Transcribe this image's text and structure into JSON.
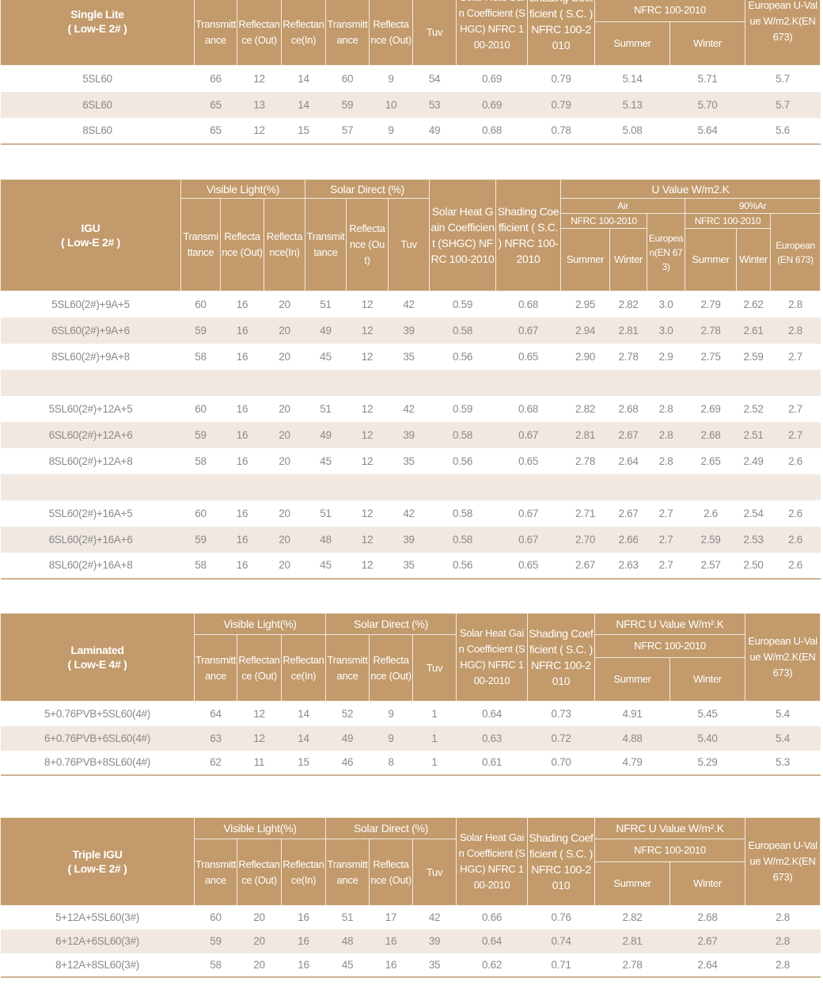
{
  "colors": {
    "header_bg": "#c29a6b",
    "stripe": "#f1e8e1",
    "text": "#8a8a8a"
  },
  "labels": {
    "visible_light": "Visible Light(%)",
    "solar_direct": "Solar  Direct (%)",
    "transmittance": "Transmittance",
    "reflectance_out": "Reflectance (Out)",
    "reflectance_in": "Reflectance(In)",
    "tuv": "Tuv",
    "shgc": "Solar Heat Gain Coefficient (SHGC) NFRC 100-2010",
    "sc": "Shading Coefficient ( S.C. ) NFRC 100-2010",
    "nfrc_u_value": "NFRC U Value W/m².K",
    "nfrc": "NFRC 100-2010",
    "summer": "Summer",
    "winter": "Winter",
    "european_u": "European U-Value W/m2.K(EN 673)",
    "u_value": "U Value W/m2.K",
    "air": "Air",
    "argon": "90%Ar",
    "european_en_air": "European(EN 673)",
    "european_en_ar": "European (EN 673)"
  },
  "single_lite": {
    "title": "Single Lite",
    "subtitle": "( Low-E 2# )",
    "rows": [
      [
        "5SL60",
        "66",
        "12",
        "14",
        "60",
        "9",
        "54",
        "0.69",
        "0.79",
        "5.14",
        "5.71",
        "5.7"
      ],
      [
        "6SL60",
        "65",
        "13",
        "14",
        "59",
        "10",
        "53",
        "0.69",
        "0.79",
        "5.13",
        "5.70",
        "5.7"
      ],
      [
        "8SL60",
        "65",
        "12",
        "15",
        "57",
        "9",
        "49",
        "0.68",
        "0.78",
        "5.08",
        "5.64",
        "5.6"
      ]
    ]
  },
  "igu": {
    "title": "IGU",
    "subtitle": "( Low-E 2# )",
    "rows": [
      [
        "5SL60(2#)+9A+5",
        "60",
        "16",
        "20",
        "51",
        "12",
        "42",
        "0.59",
        "0.68",
        "2.95",
        "2.82",
        "3.0",
        "2.79",
        "2.62",
        "2.8"
      ],
      [
        "6SL60(2#)+9A+6",
        "59",
        "16",
        "20",
        "49",
        "12",
        "39",
        "0.58",
        "0.67",
        "2.94",
        "2.81",
        "3.0",
        "2.78",
        "2.61",
        "2.8"
      ],
      [
        "8SL60(2#)+9A+8",
        "58",
        "16",
        "20",
        "45",
        "12",
        "35",
        "0.56",
        "0.65",
        "2.90",
        "2.78",
        "2.9",
        "2.75",
        "2.59",
        "2.7"
      ],
      [],
      [
        "5SL60(2#)+12A+5",
        "60",
        "16",
        "20",
        "51",
        "12",
        "42",
        "0.59",
        "0.68",
        "2.82",
        "2.68",
        "2.8",
        "2.69",
        "2.52",
        "2.7"
      ],
      [
        "6SL60(2#)+12A+6",
        "59",
        "16",
        "20",
        "49",
        "12",
        "39",
        "0.58",
        "0.67",
        "2.81",
        "2.67",
        "2.8",
        "2.68",
        "2.51",
        "2.7"
      ],
      [
        "8SL60(2#)+12A+8",
        "58",
        "16",
        "20",
        "45",
        "12",
        "35",
        "0.56",
        "0.65",
        "2.78",
        "2.64",
        "2.8",
        "2.65",
        "2.49",
        "2.6"
      ],
      [],
      [
        "5SL60(2#)+16A+5",
        "60",
        "16",
        "20",
        "51",
        "12",
        "42",
        "0.58",
        "0.67",
        "2.71",
        "2.67",
        "2.7",
        "2.6",
        "2.54",
        "2.6"
      ],
      [
        "6SL60(2#)+16A+6",
        "59",
        "16",
        "20",
        "48",
        "12",
        "39",
        "0.58",
        "0.67",
        "2.70",
        "2.66",
        "2.7",
        "2.59",
        "2.53",
        "2.6"
      ],
      [
        "8SL60(2#)+16A+8",
        "58",
        "16",
        "20",
        "45",
        "12",
        "35",
        "0.56",
        "0.65",
        "2.67",
        "2.63",
        "2.7",
        "2.57",
        "2.50",
        "2.6"
      ]
    ]
  },
  "laminated": {
    "title": "Laminated",
    "subtitle": "( Low-E 4# )",
    "rows": [
      [
        "5+0.76PVB+5SL60(4#)",
        "64",
        "12",
        "14",
        "52",
        "9",
        "1",
        "0.64",
        "0.73",
        "4.91",
        "5.45",
        "5.4"
      ],
      [
        "6+0.76PVB+6SL60(4#)",
        "63",
        "12",
        "14",
        "49",
        "9",
        "1",
        "0.63",
        "0.72",
        "4.88",
        "5.40",
        "5.4"
      ],
      [
        "8+0.76PVB+8SL60(4#)",
        "62",
        "11",
        "15",
        "46",
        "8",
        "1",
        "0.61",
        "0.70",
        "4.79",
        "5.29",
        "5.3"
      ]
    ]
  },
  "triple_igu": {
    "title": "Triple IGU",
    "subtitle": "( Low-E 2# )",
    "rows": [
      [
        "5+12A+5SL60(3#)",
        "60",
        "20",
        "16",
        "51",
        "17",
        "42",
        "0.66",
        "0.76",
        "2.82",
        "2.68",
        "2.8"
      ],
      [
        "6+12A+6SL60(3#)",
        "59",
        "20",
        "16",
        "48",
        "16",
        "39",
        "0.64",
        "0.74",
        "2.81",
        "2.67",
        "2.8"
      ],
      [
        "8+12A+8SL60(3#)",
        "58",
        "20",
        "16",
        "45",
        "16",
        "35",
        "0.62",
        "0.71",
        "2.78",
        "2.64",
        "2.8"
      ]
    ]
  }
}
